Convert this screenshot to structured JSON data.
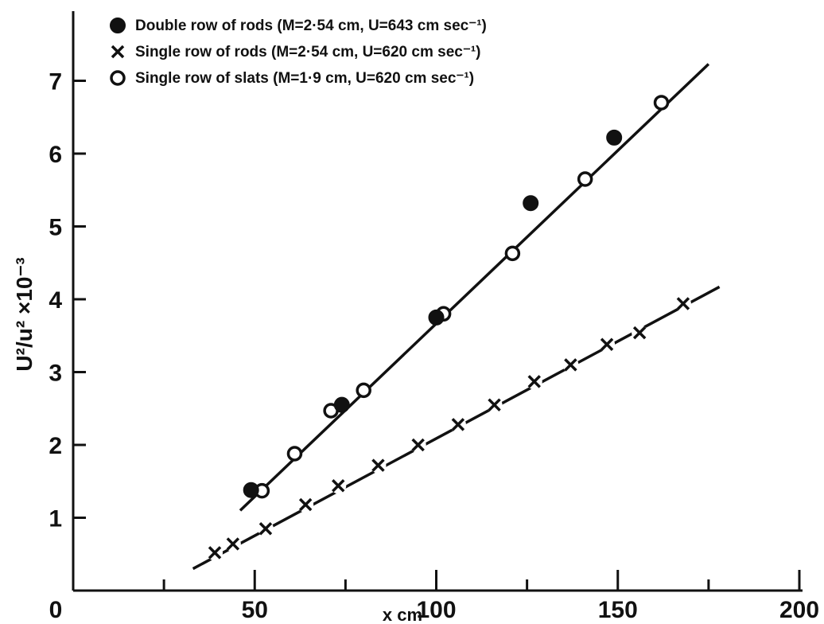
{
  "chart_data": {
    "type": "scatter",
    "title": "",
    "xlabel": "x cm",
    "ylabel": "U²/u² ×10⁻³",
    "xlim": [
      0,
      200
    ],
    "ylim": [
      0,
      8
    ],
    "x_ticks": [
      0,
      50,
      100,
      150,
      200
    ],
    "x_minor_ticks": [
      25,
      75,
      125,
      175
    ],
    "y_ticks": [
      1,
      2,
      3,
      4,
      5,
      6,
      7
    ],
    "grid": false,
    "legend_position": "top-left",
    "series": [
      {
        "name": "Double row of rods (M=2·54 cm, U=643 cm sec⁻¹)",
        "marker": "filled-circle",
        "x": [
          49,
          74,
          100,
          126,
          149
        ],
        "y": [
          1.38,
          2.55,
          3.75,
          5.32,
          6.22
        ]
      },
      {
        "name": "Single row of rods (M=2·54 cm, U=620 cm sec⁻¹)",
        "marker": "cross",
        "x": [
          39,
          44,
          53,
          64,
          73,
          84,
          95,
          106,
          116,
          127,
          137,
          147,
          156,
          168
        ],
        "y": [
          0.52,
          0.64,
          0.85,
          1.18,
          1.44,
          1.72,
          2.0,
          2.28,
          2.55,
          2.87,
          3.1,
          3.38,
          3.54,
          3.94
        ]
      },
      {
        "name": "Single row of slats (M=1·9 cm, U=620 cm sec⁻¹)",
        "marker": "open-circle",
        "x": [
          52,
          61,
          71,
          80,
          102,
          121,
          141,
          162
        ],
        "y": [
          1.37,
          1.88,
          2.47,
          2.75,
          3.8,
          4.63,
          5.65,
          6.7
        ]
      }
    ],
    "fit_lines": [
      {
        "x": [
          46,
          175
        ],
        "y": [
          1.1,
          7.23
        ]
      },
      {
        "x": [
          33,
          178
        ],
        "y": [
          0.3,
          4.17
        ]
      }
    ]
  }
}
